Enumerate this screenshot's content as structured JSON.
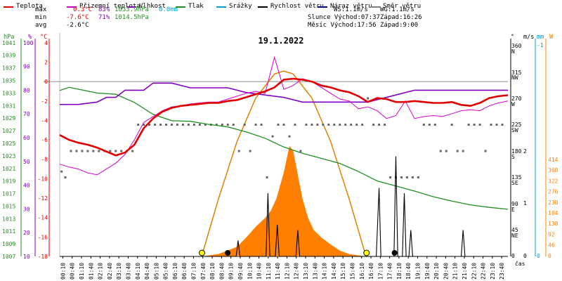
{
  "chart_data": {
    "type": "line",
    "title": "19.1.2022",
    "legend": [
      {
        "label": "Teplota",
        "color": "#e00000"
      },
      {
        "label": "Přizemní teplota",
        "color": "#d000d0"
      },
      {
        "label": "Vlhkost",
        "color": "#8000c0"
      },
      {
        "label": "Tlak",
        "color": "#209020"
      },
      {
        "label": "Srážky",
        "color": "#00a0d0"
      },
      {
        "label": "Rychlost větru",
        "color": "#000000"
      },
      {
        "label": "Náraz větru",
        "color": "#000080"
      },
      {
        "label": "Směr větru",
        "color": "#808080"
      }
    ],
    "stats": {
      "max_label": "max",
      "min_label": "min",
      "avg_label": "avg",
      "max_temp": "0.3°C",
      "max_hum": "83%",
      "max_press": "1033.9hPa",
      "max_rain": "0.0mm",
      "min_temp": "-7.6°C",
      "min_hum": "71%",
      "min_press": "1014.5hPa",
      "avg_temp": "-2.6°C",
      "ws": "WS:1.1m/s",
      "wg": "WG:1.1m/s",
      "sun_rise": "Slunce Východ:07:37",
      "sun_set": "Západ:16:26",
      "moon_rise": "Měsíc Východ:17:56",
      "moon_set": "Západ:9:00"
    },
    "axes": {
      "hpa_label": "hPa",
      "pct_label": "%",
      "c_label": "°C",
      "deg_label": "°",
      "ms_label": "m/s",
      "mm_label": "mm",
      "w_label": "W",
      "x_label": "čas",
      "hpa_ticks": [
        "1041",
        "1039",
        "1037",
        "1035",
        "1033",
        "1031",
        "1029",
        "1027",
        "1025",
        "1023",
        "1021",
        "1019",
        "1017",
        "1015",
        "1013",
        "1011",
        "1009",
        "1007"
      ],
      "pct_ticks": [
        "100",
        "90",
        "80",
        "70",
        "60",
        "50",
        "40",
        "30",
        "20",
        "10"
      ],
      "temp_ticks": [
        "4",
        "2",
        "0",
        "-2",
        "-4",
        "-6",
        "-8",
        "-10",
        "-12",
        "-14",
        "-16",
        "-18"
      ],
      "dir_ticks": [
        "360",
        "N",
        "315",
        "NW",
        "270",
        "W",
        "225",
        "SW",
        "180",
        "S",
        "135",
        "SE",
        "90",
        "E",
        "45",
        "NE",
        "0"
      ],
      "ms_ticks": [
        "2",
        "1",
        "0"
      ],
      "mm_ticks": [
        "-1",
        "0"
      ],
      "w_ticks": [
        "414",
        "368",
        "322",
        "276",
        "230",
        "184",
        "138",
        "92",
        "46",
        "0"
      ],
      "x_ticks": [
        "00:10",
        "00:40",
        "01:10",
        "01:40",
        "02:10",
        "02:40",
        "03:10",
        "03:40",
        "04:10",
        "04:40",
        "05:10",
        "05:40",
        "06:10",
        "06:40",
        "07:10",
        "07:40",
        "08:10",
        "08:40",
        "09:10",
        "09:40",
        "10:10",
        "10:40",
        "11:10",
        "11:40",
        "12:10",
        "12:40",
        "13:10",
        "13:40",
        "14:10",
        "14:40",
        "15:10",
        "15:40",
        "16:10",
        "16:40",
        "17:10",
        "17:40",
        "18:10",
        "18:40",
        "19:10",
        "19:40",
        "20:10",
        "20:40",
        "21:10",
        "21:40",
        "22:10",
        "22:40",
        "23:10",
        "23:40"
      ]
    },
    "xlim_hours": [
      0,
      24
    ],
    "temp_ylim": [
      -18,
      5
    ],
    "series": [
      {
        "name": "Teplota",
        "unit": "°C",
        "color": "#e00000",
        "x": [
          0,
          0.5,
          1,
          1.5,
          2,
          2.5,
          3,
          3.5,
          4,
          4.5,
          5,
          5.5,
          6,
          6.5,
          7,
          7.5,
          8,
          8.5,
          9,
          9.5,
          10,
          10.5,
          11,
          11.5,
          12,
          12.5,
          13,
          13.5,
          14,
          14.5,
          15,
          15.5,
          16,
          16.5,
          17,
          17.5,
          18,
          18.5,
          19,
          19.5,
          20,
          20.5,
          21,
          21.5,
          22,
          22.5,
          23,
          23.5,
          24
        ],
        "values": [
          -5.5,
          -6,
          -6.3,
          -6.5,
          -6.8,
          -7.2,
          -7.6,
          -7.3,
          -6.5,
          -4.8,
          -3.8,
          -3.1,
          -2.7,
          -2.5,
          -2.4,
          -2.3,
          -2.2,
          -2.2,
          -2.0,
          -1.9,
          -1.6,
          -1.3,
          -1.0,
          -0.6,
          0.2,
          0.3,
          0.2,
          0,
          -0.4,
          -0.6,
          -0.9,
          -1.1,
          -1.5,
          -2.1,
          -1.7,
          -1.8,
          -2.1,
          -2.1,
          -2.0,
          -2.1,
          -2.2,
          -2.2,
          -2.1,
          -2.4,
          -2.5,
          -2.2,
          -1.7,
          -1.5,
          -1.4
        ]
      },
      {
        "name": "Přizemní teplota",
        "unit": "°C",
        "color": "#d000d0",
        "x": [
          0,
          0.5,
          1,
          1.5,
          2,
          2.5,
          3,
          3.5,
          4,
          4.5,
          5,
          5.5,
          6,
          6.5,
          7,
          7.5,
          8,
          8.5,
          9,
          9.5,
          10,
          10.5,
          11,
          11.5,
          12,
          12.5,
          13,
          13.5,
          14,
          14.5,
          15,
          15.5,
          16,
          16.5,
          17,
          17.5,
          18,
          18.5,
          19,
          19.5,
          20,
          20.5,
          21,
          21.5,
          22,
          22.5,
          23,
          23.5,
          24
        ],
        "values": [
          -8.5,
          -8.8,
          -9,
          -9.4,
          -9.6,
          -9.0,
          -8.4,
          -7.5,
          -6.0,
          -4.2,
          -3.6,
          -3.0,
          -2.6,
          -2.5,
          -2.3,
          -2.2,
          -2.1,
          -2.1,
          -1.8,
          -1.5,
          -1.2,
          -1.0,
          -1.2,
          2.5,
          -0.8,
          -0.4,
          0.3,
          0,
          -0.6,
          -1.2,
          -1.8,
          -2.0,
          -2.8,
          -2.6,
          -3.0,
          -3.8,
          -3.5,
          -2.0,
          -3.8,
          -3.6,
          -3.5,
          -3.6,
          -3.3,
          -3.0,
          -2.9,
          -3.0,
          -2.5,
          -2.2,
          -2.0
        ]
      },
      {
        "name": "Vlhkost",
        "unit": "%",
        "color": "#8000c0",
        "x": [
          0,
          1,
          2,
          2.5,
          3,
          3.5,
          4,
          4.5,
          5,
          6,
          7,
          8,
          9,
          10,
          11,
          12,
          13,
          14,
          15,
          16,
          16.5,
          17,
          18,
          19,
          20,
          21,
          22,
          23,
          24
        ],
        "values": [
          74,
          74,
          75,
          77,
          77,
          80,
          80,
          80,
          83,
          83,
          81,
          81,
          81,
          79,
          78,
          77,
          75,
          75,
          75,
          75,
          75,
          76,
          78,
          80,
          80,
          80,
          80,
          80,
          80
        ]
      },
      {
        "name": "Tlak",
        "unit": "hPa",
        "color": "#209020",
        "x": [
          0,
          0.5,
          1,
          2,
          3,
          4,
          5,
          6,
          7,
          8,
          9,
          10,
          11,
          12,
          13,
          14,
          15,
          16,
          17,
          18,
          19,
          20,
          21,
          22,
          23,
          24
        ],
        "values": [
          1033.4,
          1033.9,
          1033.6,
          1033.0,
          1032.8,
          1031.5,
          1029.6,
          1028.6,
          1028.5,
          1028.0,
          1027.6,
          1026.8,
          1025.8,
          1024.4,
          1023.4,
          1022.6,
          1021.8,
          1020.5,
          1019.0,
          1018.2,
          1017.4,
          1016.5,
          1015.8,
          1015.2,
          1014.8,
          1014.5
        ]
      },
      {
        "name": "Rychlost větru",
        "unit": "m/s",
        "color": "#000000",
        "x": [
          0,
          9.45,
          9.55,
          9.65,
          11.05,
          11.15,
          11.25,
          11.55,
          11.65,
          11.75,
          12.65,
          12.75,
          12.85,
          16.95,
          17.1,
          17.2,
          17.9,
          18.0,
          18.1,
          18.35,
          18.45,
          18.55,
          18.7,
          18.8,
          18.9,
          21.5,
          21.6,
          21.7,
          24
        ],
        "values": [
          0,
          0,
          0.3,
          0,
          0,
          1.2,
          0,
          0,
          0.6,
          0,
          0,
          0.5,
          0,
          0,
          1.3,
          0,
          0,
          1.9,
          0,
          0,
          1.2,
          0,
          0,
          0.5,
          0,
          0,
          0.5,
          0,
          0
        ]
      },
      {
        "name": "Sluneční záření",
        "unit": "W",
        "color": "#ff8000",
        "x": [
          7.6,
          8.5,
          9.5,
          10,
          10.5,
          11,
          11.3,
          11.6,
          12,
          12.3,
          12.5,
          12.8,
          13,
          13.3,
          13.6,
          14,
          14.5,
          15,
          15.5,
          16,
          16.4
        ],
        "values": [
          0,
          5,
          20,
          40,
          62,
          80,
          95,
          120,
          175,
          230,
          220,
          160,
          120,
          80,
          55,
          40,
          25,
          12,
          5,
          2,
          0
        ]
      },
      {
        "name": "Sluneční záření (teoretické)",
        "unit": "W",
        "color": "#e08000",
        "x": [
          7.6,
          8.5,
          9.5,
          10.5,
          11.5,
          12,
          12.5,
          13.5,
          14.5,
          15.5,
          16.4
        ],
        "values": [
          0,
          120,
          240,
          330,
          380,
          386,
          380,
          330,
          240,
          120,
          0
        ]
      }
    ],
    "wind_direction_deg": {
      "x": [
        0.1,
        0.3,
        0.6,
        0.9,
        1.2,
        1.5,
        1.8,
        2.1,
        2.4,
        2.7,
        3.0,
        3.3,
        3.6,
        3.9,
        4.2,
        4.5,
        4.8,
        5.1,
        5.4,
        5.7,
        6.0,
        6.3,
        6.6,
        6.9,
        7.2,
        7.5,
        7.8,
        8.1,
        8.4,
        8.7,
        9.0,
        9.3,
        9.6,
        9.9,
        10.2,
        10.5,
        10.8,
        11.1,
        11.4,
        11.7,
        12.0,
        12.3,
        12.6,
        12.9,
        13.2,
        13.5,
        13.8,
        14.1,
        14.4,
        14.7,
        15.0,
        15.3,
        15.6,
        15.9,
        16.2,
        16.5,
        16.8,
        17.1,
        17.4,
        17.7,
        18.0,
        18.3,
        18.6,
        18.9,
        19.2,
        19.5,
        19.8,
        20.1,
        20.4,
        20.7,
        21.0,
        21.3,
        21.6,
        21.9,
        22.2,
        22.5,
        22.8,
        23.1,
        23.4,
        23.7
      ],
      "values": [
        145,
        135,
        180,
        180,
        180,
        180,
        180,
        180,
        180,
        180,
        180,
        180,
        180,
        180,
        225,
        225,
        225,
        225,
        225,
        225,
        225,
        225,
        225,
        225,
        225,
        225,
        225,
        225,
        225,
        225,
        225,
        225,
        180,
        225,
        180,
        225,
        225,
        135,
        205,
        225,
        225,
        205,
        225,
        180,
        225,
        225,
        225,
        225,
        225,
        225,
        225,
        225,
        225,
        225,
        225,
        270,
        225,
        225,
        225,
        135,
        135,
        135,
        135,
        135,
        135,
        225,
        225,
        225,
        180,
        180,
        225,
        180,
        180,
        225,
        225,
        225,
        180,
        225,
        225,
        225
      ]
    },
    "markers": {
      "sunrise_hour": 7.62,
      "sunset_hour": 16.43,
      "moonset_hour": 9.0,
      "moonrise_hour": 17.93
    }
  }
}
